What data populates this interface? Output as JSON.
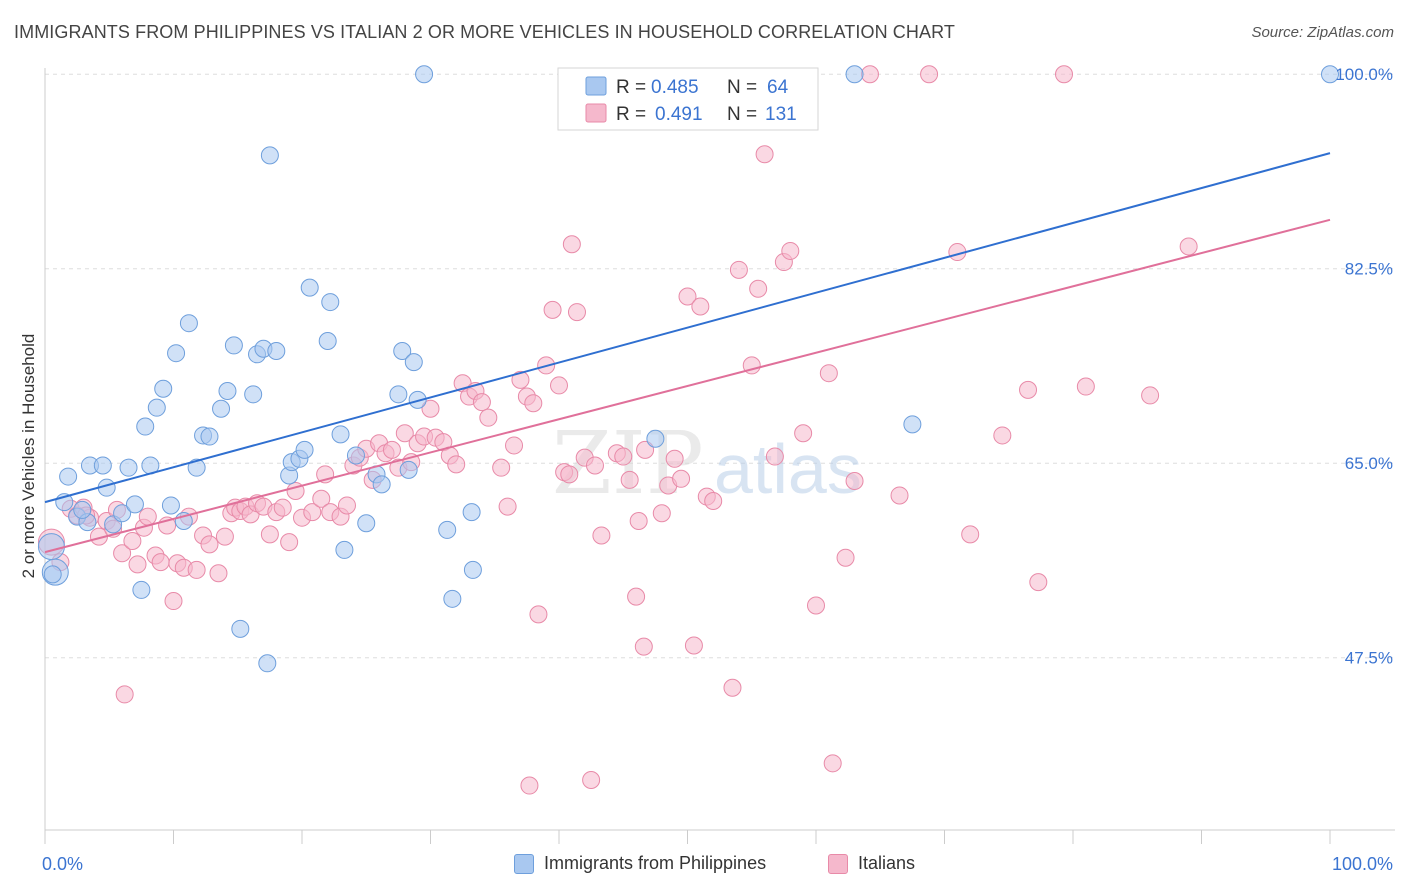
{
  "title": "IMMIGRANTS FROM PHILIPPINES VS ITALIAN 2 OR MORE VEHICLES IN HOUSEHOLD CORRELATION CHART",
  "source": "Source: ZipAtlas.com",
  "watermark": {
    "zip": "ZIP",
    "atlas": "atlas"
  },
  "colors": {
    "blue_fill": "#a9c8f0",
    "blue_stroke": "#6e9fdc",
    "blue_line": "#2f6fd0",
    "pink_fill": "#f5b8cc",
    "pink_stroke": "#e88aa8",
    "pink_line": "#e0709a",
    "tick_label": "#3b74d1",
    "grid": "#dddddd"
  },
  "legend": {
    "rows": [
      {
        "r_label": "R = ",
        "r_value": "0.485",
        "n_label": "N = ",
        "n_value": "64"
      },
      {
        "r_label": "R = ",
        "r_value": "0.491",
        "n_label": "N = ",
        "n_value": "131"
      }
    ]
  },
  "chart_data": {
    "type": "scatter",
    "title": "IMMIGRANTS FROM PHILIPPINES VS ITALIAN 2 OR MORE VEHICLES IN HOUSEHOLD CORRELATION CHART",
    "xlabel": "",
    "ylabel": "2 or more Vehicles in Household",
    "xlim": [
      0,
      100
    ],
    "ylim": [
      32,
      102
    ],
    "x_tick_labels": [
      "0.0%",
      "100.0%"
    ],
    "y_ticks": [
      47.5,
      65.0,
      82.5,
      100.0
    ],
    "y_tick_labels": [
      "47.5%",
      "65.0%",
      "82.5%",
      "100.0%"
    ],
    "grid": true,
    "legend_position": "top-center",
    "series": [
      {
        "name": "Immigrants from Philippines",
        "r": 0.485,
        "n": 64,
        "trend": [
          [
            0,
            61.5
          ],
          [
            100,
            92.9
          ]
        ],
        "points": [
          [
            0.5,
            57.5
          ],
          [
            0.8,
            55.2
          ],
          [
            1.5,
            61.5
          ],
          [
            1.8,
            63.8
          ],
          [
            2.5,
            60.2
          ],
          [
            3.3,
            59.7
          ],
          [
            3.5,
            64.8
          ],
          [
            4.5,
            64.8
          ],
          [
            4.8,
            62.8
          ],
          [
            5.3,
            59.5
          ],
          [
            6.0,
            60.5
          ],
          [
            6.5,
            64.6
          ],
          [
            7.0,
            61.3
          ],
          [
            7.5,
            53.6
          ],
          [
            7.8,
            68.3
          ],
          [
            8.2,
            64.8
          ],
          [
            8.7,
            70.0
          ],
          [
            9.2,
            71.7
          ],
          [
            9.8,
            61.2
          ],
          [
            10.2,
            74.9
          ],
          [
            10.8,
            59.8
          ],
          [
            11.2,
            77.6
          ],
          [
            11.8,
            64.6
          ],
          [
            12.3,
            67.5
          ],
          [
            12.8,
            67.4
          ],
          [
            13.7,
            69.9
          ],
          [
            14.2,
            71.5
          ],
          [
            14.7,
            75.6
          ],
          [
            15.2,
            50.1
          ],
          [
            16.2,
            71.2
          ],
          [
            16.5,
            74.8
          ],
          [
            17.0,
            75.3
          ],
          [
            17.3,
            47.0
          ],
          [
            17.5,
            92.7
          ],
          [
            18.0,
            75.1
          ],
          [
            19.0,
            63.9
          ],
          [
            19.2,
            65.1
          ],
          [
            19.8,
            65.4
          ],
          [
            20.2,
            66.2
          ],
          [
            20.6,
            80.8
          ],
          [
            22.0,
            76.0
          ],
          [
            22.2,
            79.5
          ],
          [
            23.0,
            67.6
          ],
          [
            23.3,
            57.2
          ],
          [
            24.2,
            65.7
          ],
          [
            25.0,
            59.6
          ],
          [
            25.8,
            64.0
          ],
          [
            26.2,
            63.1
          ],
          [
            27.5,
            71.2
          ],
          [
            27.8,
            75.1
          ],
          [
            28.3,
            64.4
          ],
          [
            28.7,
            74.1
          ],
          [
            29.0,
            70.7
          ],
          [
            29.5,
            100.0
          ],
          [
            31.3,
            59.0
          ],
          [
            31.7,
            52.8
          ],
          [
            33.2,
            60.6
          ],
          [
            33.3,
            55.4
          ],
          [
            47.5,
            67.2
          ],
          [
            63.0,
            100.0
          ],
          [
            67.5,
            68.5
          ],
          [
            100,
            100.0
          ],
          [
            0.6,
            55.0
          ],
          [
            2.9,
            60.8
          ]
        ]
      },
      {
        "name": "Italians",
        "r": 0.491,
        "n": 131,
        "trend": [
          [
            0,
            57.0
          ],
          [
            100,
            86.9
          ]
        ],
        "points": [
          [
            0.5,
            57.9
          ],
          [
            1.2,
            56.1
          ],
          [
            2.0,
            60.9
          ],
          [
            2.5,
            60.3
          ],
          [
            3.0,
            61.0
          ],
          [
            3.5,
            60.1
          ],
          [
            4.2,
            58.4
          ],
          [
            4.8,
            59.8
          ],
          [
            5.3,
            59.1
          ],
          [
            5.6,
            60.8
          ],
          [
            6.0,
            56.9
          ],
          [
            6.8,
            58.0
          ],
          [
            7.2,
            55.9
          ],
          [
            7.7,
            59.2
          ],
          [
            8.0,
            60.2
          ],
          [
            8.6,
            56.7
          ],
          [
            9.0,
            56.1
          ],
          [
            9.5,
            59.4
          ],
          [
            10.0,
            52.6
          ],
          [
            10.3,
            56.0
          ],
          [
            10.8,
            55.6
          ],
          [
            11.2,
            60.2
          ],
          [
            11.8,
            55.4
          ],
          [
            12.3,
            58.5
          ],
          [
            12.8,
            57.7
          ],
          [
            13.5,
            55.1
          ],
          [
            14.0,
            58.4
          ],
          [
            14.5,
            60.5
          ],
          [
            14.8,
            61.0
          ],
          [
            15.2,
            60.7
          ],
          [
            15.6,
            61.1
          ],
          [
            16.0,
            60.4
          ],
          [
            16.5,
            61.4
          ],
          [
            17.0,
            61.1
          ],
          [
            17.5,
            58.6
          ],
          [
            18.0,
            60.6
          ],
          [
            18.5,
            61.0
          ],
          [
            19.0,
            57.9
          ],
          [
            19.5,
            62.5
          ],
          [
            20.0,
            60.1
          ],
          [
            20.8,
            60.6
          ],
          [
            21.5,
            61.8
          ],
          [
            21.8,
            64.0
          ],
          [
            22.2,
            60.6
          ],
          [
            23.0,
            60.2
          ],
          [
            23.5,
            61.2
          ],
          [
            24.0,
            64.8
          ],
          [
            24.5,
            65.5
          ],
          [
            25.0,
            66.3
          ],
          [
            25.5,
            63.5
          ],
          [
            26.0,
            66.8
          ],
          [
            26.5,
            65.9
          ],
          [
            27.0,
            66.2
          ],
          [
            27.5,
            64.6
          ],
          [
            28.0,
            67.7
          ],
          [
            28.5,
            65.1
          ],
          [
            29.0,
            66.8
          ],
          [
            29.5,
            67.4
          ],
          [
            30.0,
            69.9
          ],
          [
            30.4,
            67.3
          ],
          [
            31.0,
            66.9
          ],
          [
            31.5,
            65.7
          ],
          [
            32.0,
            64.9
          ],
          [
            32.5,
            72.2
          ],
          [
            33.0,
            71.0
          ],
          [
            33.5,
            71.5
          ],
          [
            34.0,
            70.5
          ],
          [
            34.5,
            69.1
          ],
          [
            35.5,
            64.6
          ],
          [
            36.0,
            61.1
          ],
          [
            36.5,
            66.6
          ],
          [
            37.0,
            72.5
          ],
          [
            37.5,
            71.0
          ],
          [
            38.0,
            70.4
          ],
          [
            38.4,
            51.4
          ],
          [
            39.0,
            73.8
          ],
          [
            39.5,
            78.8
          ],
          [
            40.0,
            72.0
          ],
          [
            40.4,
            64.2
          ],
          [
            40.8,
            64.0
          ],
          [
            41.0,
            84.7
          ],
          [
            41.4,
            78.6
          ],
          [
            42.0,
            65.5
          ],
          [
            42.8,
            64.8
          ],
          [
            43.3,
            58.5
          ],
          [
            44.5,
            65.9
          ],
          [
            45.0,
            65.6
          ],
          [
            45.5,
            63.5
          ],
          [
            46.0,
            53.0
          ],
          [
            46.2,
            59.8
          ],
          [
            46.7,
            66.2
          ],
          [
            48.0,
            60.5
          ],
          [
            48.5,
            63.0
          ],
          [
            49.0,
            65.4
          ],
          [
            49.5,
            63.6
          ],
          [
            50.0,
            80.0
          ],
          [
            50.5,
            48.6
          ],
          [
            51.0,
            79.1
          ],
          [
            51.5,
            62.0
          ],
          [
            52.0,
            61.6
          ],
          [
            53.5,
            44.8
          ],
          [
            54.0,
            82.4
          ],
          [
            55.0,
            73.8
          ],
          [
            55.5,
            80.7
          ],
          [
            56.0,
            92.8
          ],
          [
            56.8,
            65.6
          ],
          [
            57.5,
            83.1
          ],
          [
            58.0,
            84.1
          ],
          [
            59.0,
            67.7
          ],
          [
            60.0,
            52.2
          ],
          [
            61.0,
            73.1
          ],
          [
            61.3,
            38.0
          ],
          [
            62.3,
            56.5
          ],
          [
            63.0,
            63.4
          ],
          [
            64.2,
            100.0
          ],
          [
            66.5,
            62.1
          ],
          [
            68.8,
            100.0
          ],
          [
            71.0,
            84.0
          ],
          [
            72.0,
            58.6
          ],
          [
            74.5,
            67.5
          ],
          [
            76.5,
            71.6
          ],
          [
            77.3,
            54.3
          ],
          [
            79.3,
            100.0
          ],
          [
            81.0,
            71.9
          ],
          [
            86.0,
            71.1
          ],
          [
            89.0,
            84.5
          ],
          [
            3.2,
            60.3
          ],
          [
            6.2,
            44.2
          ],
          [
            37.7,
            36.0
          ],
          [
            42.5,
            36.5
          ],
          [
            46.6,
            48.5
          ]
        ]
      }
    ]
  },
  "bottom_legend": [
    {
      "label": "Immigrants from Philippines"
    },
    {
      "label": "Italians"
    }
  ]
}
